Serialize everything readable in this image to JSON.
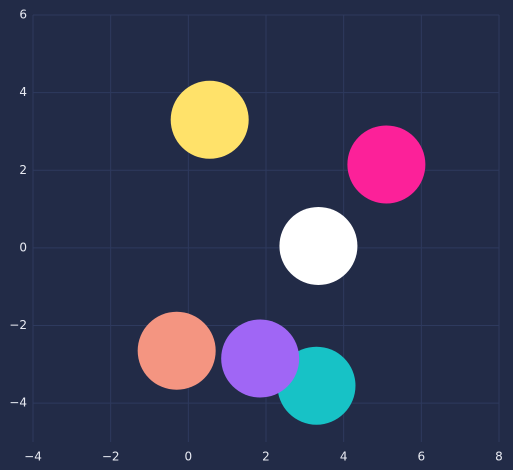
{
  "chart_data": {
    "type": "scatter",
    "title": "",
    "xlabel": "",
    "ylabel": "",
    "xlim": [
      -4,
      8
    ],
    "ylim": [
      -5,
      6
    ],
    "xticks": [
      "−4",
      "−2",
      "0",
      "2",
      "4",
      "6",
      "8"
    ],
    "yticks": [
      "6",
      "4",
      "2",
      "0",
      "−2",
      "−4"
    ],
    "xtick_values": [
      -4,
      -2,
      0,
      2,
      4,
      6,
      8
    ],
    "ytick_values": [
      6,
      4,
      2,
      0,
      -2,
      -4
    ],
    "grid": true,
    "legend": "none",
    "colors": {
      "background": "#222b47",
      "grid": "#2e3a5e"
    },
    "points": [
      {
        "x": 0.55,
        "y": 3.3,
        "color": "#ffe26a"
      },
      {
        "x": 5.1,
        "y": 2.15,
        "color": "#fc2199"
      },
      {
        "x": 3.35,
        "y": 0.05,
        "color": "#ffffff"
      },
      {
        "x": -0.3,
        "y": -2.65,
        "color": "#f49581"
      },
      {
        "x": 3.3,
        "y": -3.55,
        "color": "#17c2c6"
      },
      {
        "x": 1.85,
        "y": -2.85,
        "color": "#a066f5"
      }
    ]
  }
}
